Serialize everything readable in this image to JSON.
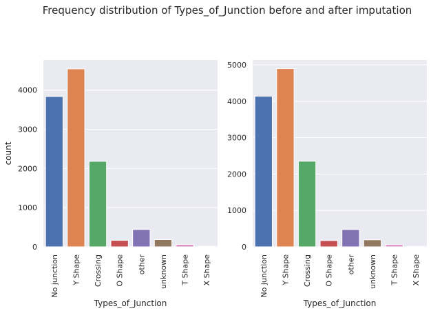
{
  "figure": {
    "suptitle": "Frequency distribution of Types_of_Junction before and after imputation"
  },
  "chart_data": [
    {
      "type": "bar",
      "title": "",
      "xlabel": "Types_of_Junction",
      "ylabel": "count",
      "categories": [
        "No junction",
        "Y Shape",
        "Crossing",
        "O Shape",
        "other",
        "unknown",
        "T Shape",
        "X Shape"
      ],
      "values": [
        3837,
        4543,
        2183,
        164,
        441,
        185,
        60,
        12
      ],
      "colors": [
        "#4c72b0",
        "#dd8452",
        "#55a868",
        "#c44e52",
        "#8172b3",
        "#937860",
        "#da8bc3",
        "#8c8c8c"
      ],
      "ylim": [
        0,
        4770
      ],
      "yticks": [
        0,
        1000,
        2000,
        3000,
        4000
      ],
      "grid": true,
      "background": "#eaeaf2"
    },
    {
      "type": "bar",
      "title": "",
      "xlabel": "Types_of_Junction",
      "ylabel": "",
      "categories": [
        "No junction",
        "Y Shape",
        "Crossing",
        "O Shape",
        "other",
        "unknown",
        "T Shape",
        "X Shape"
      ],
      "values": [
        4138,
        4897,
        2353,
        171,
        474,
        193,
        60,
        12
      ],
      "colors": [
        "#4c72b0",
        "#dd8452",
        "#55a868",
        "#c44e52",
        "#8172b3",
        "#937860",
        "#da8bc3",
        "#8c8c8c"
      ],
      "ylim": [
        0,
        5135
      ],
      "yticks": [
        0,
        1000,
        2000,
        3000,
        4000,
        5000
      ],
      "grid": true,
      "background": "#eaeaf2"
    }
  ]
}
